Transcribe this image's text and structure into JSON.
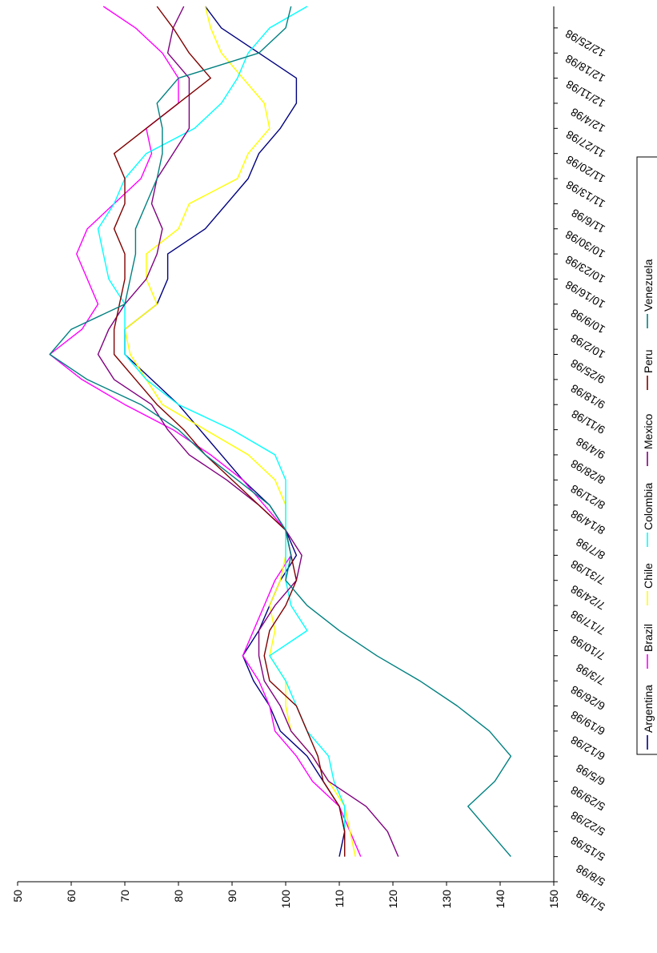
{
  "chart_data": {
    "type": "line",
    "title": "",
    "xlabel": "",
    "ylabel": "",
    "ylim": [
      50,
      150
    ],
    "yticks": [
      50,
      60,
      70,
      80,
      90,
      100,
      110,
      120,
      130,
      140,
      150
    ],
    "xticks": [
      "5/1/98",
      "5/8/98",
      "5/15/98",
      "5/22/98",
      "5/29/98",
      "6/5/98",
      "6/12/98",
      "6/19/98",
      "6/26/98",
      "7/3/98",
      "7/10/98",
      "7/17/98",
      "7/24/98",
      "7/31/98",
      "8/7/98",
      "8/14/98",
      "8/21/98",
      "8/28/98",
      "9/4/98",
      "9/11/98",
      "9/18/98",
      "9/25/98",
      "10/2/98",
      "10/9/98",
      "10/16/98",
      "10/23/98",
      "10/30/98",
      "11/6/98",
      "11/13/98",
      "11/20/98",
      "11/27/98",
      "12/4/98",
      "12/11/98",
      "12/18/98",
      "12/25/98"
    ],
    "x_dates": [
      "5/8/98",
      "5/15/98",
      "5/22/98",
      "5/29/98",
      "6/5/98",
      "6/12/98",
      "6/19/98",
      "6/26/98",
      "7/3/98",
      "7/10/98",
      "7/17/98",
      "7/24/98",
      "7/31/98",
      "8/7/98",
      "8/14/98",
      "8/21/98",
      "8/28/98",
      "9/4/98",
      "9/11/98",
      "9/18/98",
      "9/25/98",
      "10/2/98",
      "10/9/98",
      "10/16/98",
      "10/23/98",
      "10/30/98",
      "11/6/98",
      "11/13/98",
      "11/20/98",
      "11/27/98",
      "12/4/98",
      "12/11/98",
      "12/18/98",
      "12/25/98",
      "12/31/98"
    ],
    "legend_position": "right",
    "grid": false,
    "series": [
      {
        "name": "Argentina",
        "color": "#000080",
        "values": [
          110,
          111,
          110,
          107,
          104,
          99,
          97,
          94,
          92,
          95,
          97,
          99,
          102,
          100,
          97,
          92,
          88,
          84,
          80,
          75,
          70,
          70,
          76,
          78,
          78,
          85,
          89,
          93,
          95,
          99,
          102,
          102,
          95,
          88,
          85
        ]
      },
      {
        "name": "Brazil",
        "color": "#FF00FF",
        "values": [
          114,
          112,
          110,
          105,
          102,
          98,
          97,
          95,
          92,
          94,
          96,
          98,
          101,
          100,
          96,
          92,
          86,
          79,
          70,
          62,
          56,
          62,
          65,
          63,
          61,
          63,
          68,
          73,
          75,
          74,
          80,
          80,
          77,
          72,
          66
        ]
      },
      {
        "name": "Chile",
        "color": "#FFFF00",
        "values": [
          113,
          112,
          111,
          108,
          105,
          101,
          100,
          100,
          97,
          98,
          97,
          99,
          100,
          100,
          100,
          98,
          93,
          85,
          77,
          74,
          71,
          70,
          76,
          74,
          74,
          80,
          82,
          91,
          93,
          97,
          96,
          92,
          88,
          86,
          85
        ]
      },
      {
        "name": "Colombia",
        "color": "#00FFFF",
        "values": [
          111,
          111,
          111,
          109,
          108,
          104,
          102,
          100,
          97,
          104,
          101,
          100,
          100,
          100,
          100,
          100,
          98,
          90,
          80,
          74,
          70,
          70,
          70,
          67,
          66,
          65,
          68,
          70,
          74,
          83,
          88,
          91,
          93,
          97,
          104
        ]
      },
      {
        "name": "Mexico",
        "color": "#800080",
        "values": [
          121,
          119,
          115,
          108,
          105,
          101,
          99,
          96,
          95,
          95,
          98,
          102,
          103,
          100,
          95,
          89,
          82,
          78,
          75,
          68,
          65,
          67,
          70,
          74,
          76,
          77,
          75,
          76,
          79,
          82,
          82,
          82,
          78,
          79,
          81
        ]
      },
      {
        "name": "Peru",
        "color": "#800000",
        "values": [
          111,
          111,
          110,
          107,
          106,
          104,
          102,
          97,
          96,
          97,
          100,
          102,
          101,
          100,
          95,
          90,
          85,
          81,
          76,
          72,
          68,
          68,
          69,
          70,
          70,
          68,
          70,
          70,
          68,
          74,
          80,
          86,
          82,
          79,
          76
        ]
      },
      {
        "name": "Venezuela",
        "color": "#008080",
        "values": [
          142,
          138,
          134,
          139,
          142,
          138,
          132,
          125,
          117,
          110,
          104,
          100,
          101,
          100,
          97,
          91,
          85,
          80,
          73,
          63,
          56,
          60,
          70,
          71,
          72,
          72,
          74,
          76,
          77,
          77,
          76,
          80,
          95,
          100,
          101
        ]
      }
    ]
  }
}
